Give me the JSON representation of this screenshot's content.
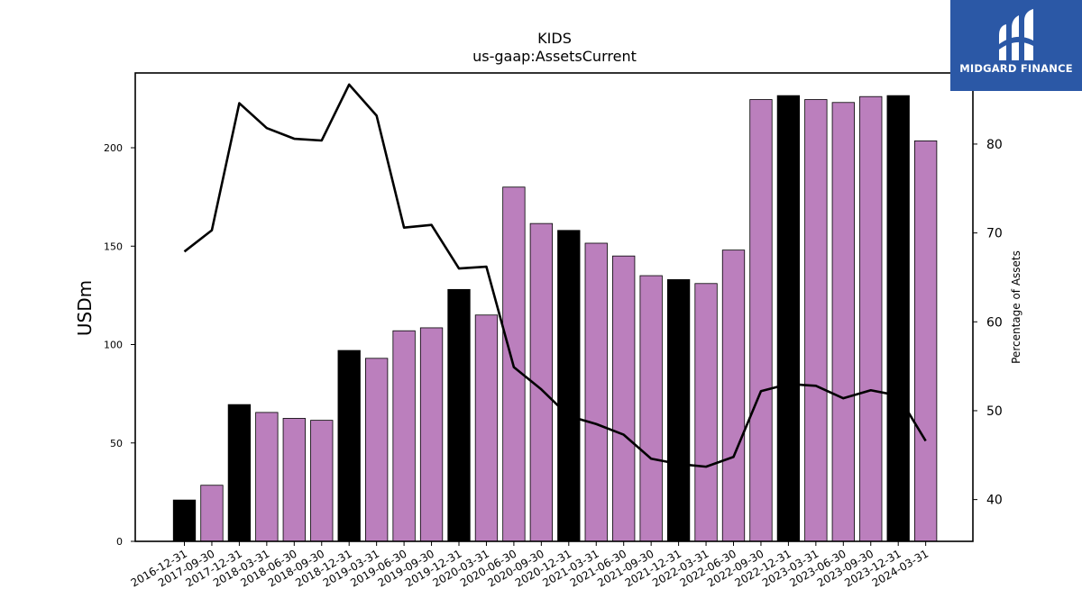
{
  "chart_data": {
    "type": "bar",
    "title": "KIDS",
    "subtitle": "us-gaap:AssetsCurrent",
    "ylabel": "USDm",
    "y2label": "Percentage of Assets",
    "ylim": [
      0,
      238
    ],
    "y2lim": [
      35.3,
      88.0
    ],
    "yticks": [
      0,
      50,
      100,
      150,
      200
    ],
    "y2ticks": [
      40,
      50,
      60,
      70,
      80
    ],
    "categories": [
      "2016-12-31",
      "2017-09-30",
      "2017-12-31",
      "2018-03-31",
      "2018-06-30",
      "2018-09-30",
      "2018-12-31",
      "2019-03-31",
      "2019-06-30",
      "2019-09-30",
      "2019-12-31",
      "2020-03-31",
      "2020-06-30",
      "2020-09-30",
      "2020-12-31",
      "2021-03-31",
      "2021-06-30",
      "2021-09-30",
      "2021-12-31",
      "2022-03-31",
      "2022-06-30",
      "2022-09-30",
      "2022-12-31",
      "2023-03-31",
      "2023-06-30",
      "2023-09-30",
      "2023-12-31",
      "2024-03-31"
    ],
    "series": [
      {
        "kind": "bar",
        "values": [
          21,
          28.5,
          69.5,
          65.5,
          62.5,
          61.5,
          97,
          93,
          107,
          108.5,
          128,
          115,
          180,
          161.5,
          158,
          151.5,
          145,
          135,
          133,
          131,
          148,
          224.5,
          226.5,
          224.5,
          223,
          226,
          226.5,
          203.5
        ],
        "colors": [
          "#000000",
          "#bb7fbd",
          "#000000",
          "#bb7fbd",
          "#bb7fbd",
          "#bb7fbd",
          "#000000",
          "#bb7fbd",
          "#bb7fbd",
          "#bb7fbd",
          "#000000",
          "#bb7fbd",
          "#bb7fbd",
          "#bb7fbd",
          "#000000",
          "#bb7fbd",
          "#bb7fbd",
          "#bb7fbd",
          "#000000",
          "#bb7fbd",
          "#bb7fbd",
          "#bb7fbd",
          "#000000",
          "#bb7fbd",
          "#bb7fbd",
          "#bb7fbd",
          "#000000",
          "#bb7fbd"
        ]
      },
      {
        "kind": "line",
        "axis": "right",
        "color": "#000000",
        "values": [
          67.9,
          70.3,
          84.6,
          81.8,
          80.6,
          80.4,
          86.7,
          83.2,
          70.6,
          70.9,
          66.0,
          66.2,
          54.9,
          52.4,
          49.4,
          48.5,
          47.3,
          44.6,
          44.0,
          43.7,
          44.8,
          52.2,
          53.0,
          52.8,
          51.4,
          52.3,
          51.7,
          46.6
        ]
      }
    ],
    "grid": false,
    "legend": "none"
  },
  "logo": {
    "text": "MIDGARD FINANCE",
    "bg_color": "#2b58a6",
    "icon": "midgard-logo-icon"
  }
}
